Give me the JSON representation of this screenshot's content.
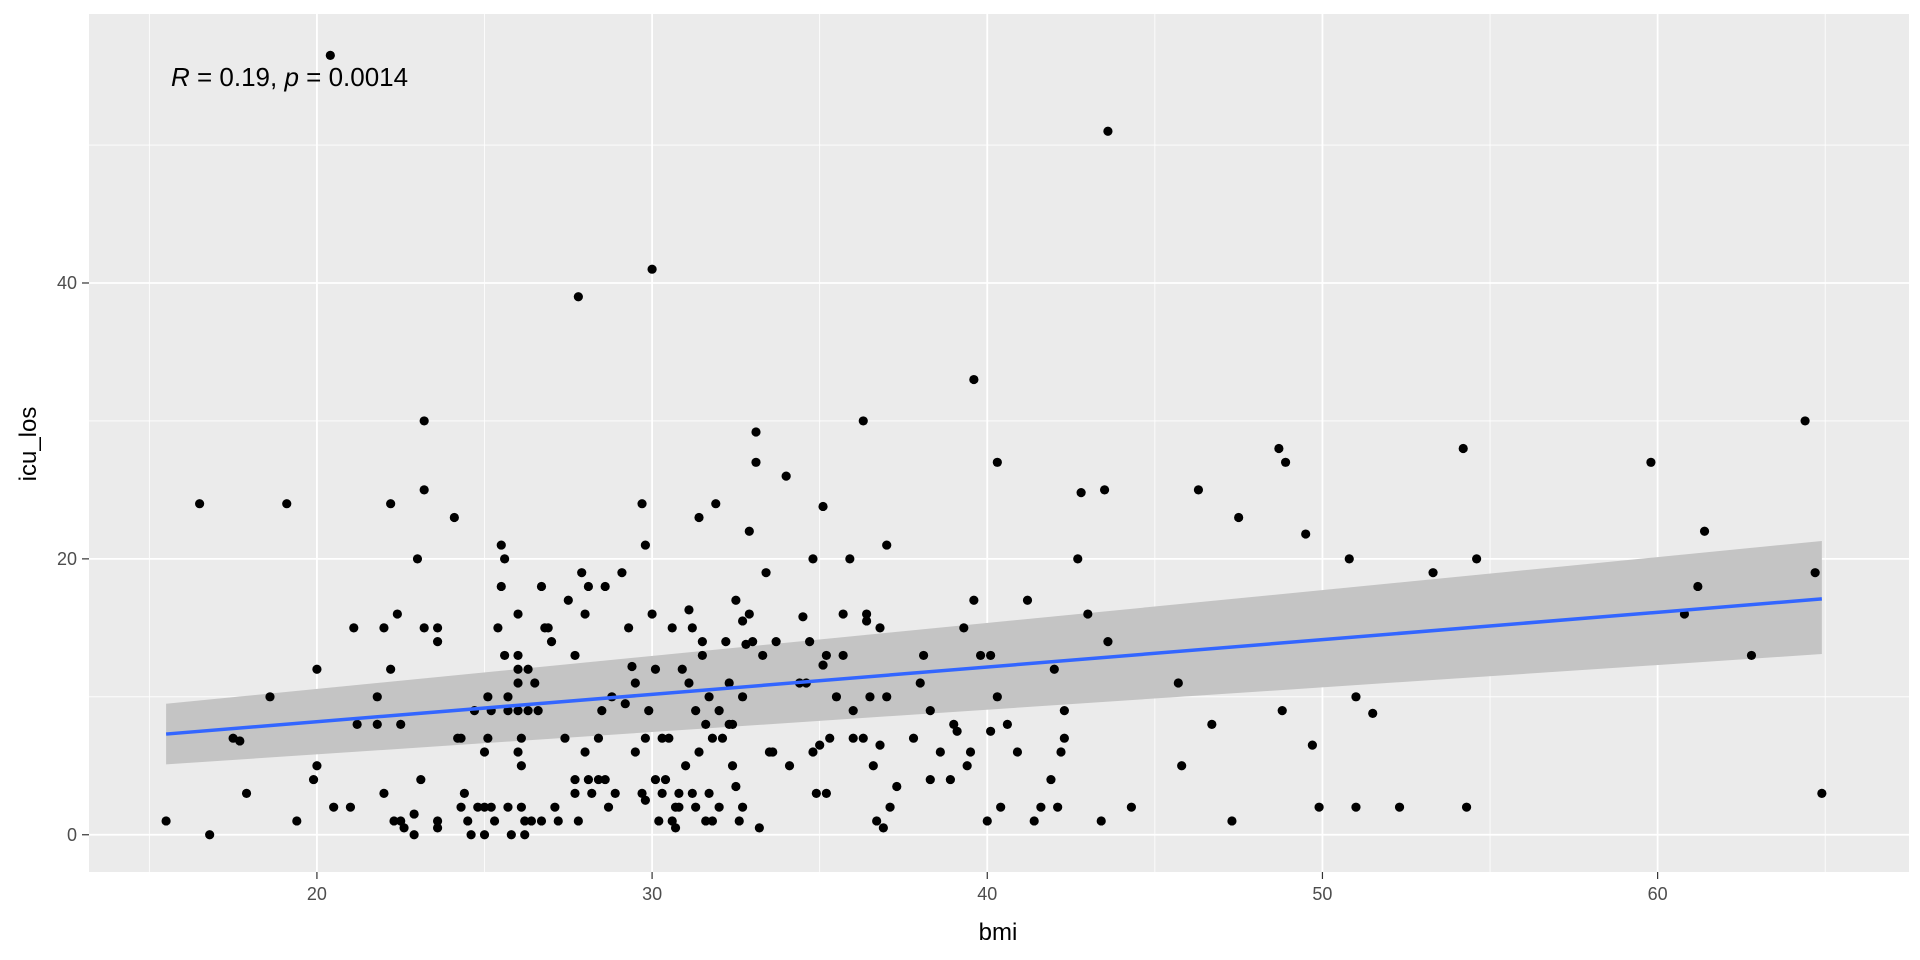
{
  "chart_data": {
    "type": "scatter",
    "title": "",
    "xlabel": "bmi",
    "ylabel": "icu_los",
    "xlim": [
      13.2,
      67.5
    ],
    "ylim": [
      -2.7,
      59.5
    ],
    "x_ticks": [
      20,
      30,
      40,
      50,
      60
    ],
    "x_tick_labels": [
      "20",
      "30",
      "40",
      "50",
      "60"
    ],
    "y_ticks": [
      0,
      20,
      40
    ],
    "y_tick_labels": [
      "0",
      "20",
      "40"
    ],
    "grid": true,
    "colors": {
      "panel_background": "#ebebeb",
      "grid_line": "#ffffff",
      "point": "#000000",
      "fit_line": "#3366ff",
      "confidence_band": "#c4c4c4",
      "tick_label": "#4d4d4d"
    },
    "annotation": {
      "r_symbol": "R",
      "r_value": " = 0.19, ",
      "p_symbol": "p",
      "p_value": " = 0.0014"
    },
    "regression": {
      "x": [
        15.5,
        64.9
      ],
      "y": [
        7.3,
        17.1
      ],
      "ci_lower": [
        5.1,
        13.1
      ],
      "ci_upper": [
        9.5,
        21.3
      ]
    },
    "points": [
      [
        15.5,
        1
      ],
      [
        16.5,
        24
      ],
      [
        16.8,
        0
      ],
      [
        17.5,
        7
      ],
      [
        17.7,
        6.8
      ],
      [
        17.9,
        3
      ],
      [
        18.6,
        10
      ],
      [
        19.1,
        24
      ],
      [
        19.4,
        1
      ],
      [
        19.9,
        4
      ],
      [
        20.0,
        5
      ],
      [
        20.0,
        12
      ],
      [
        20.4,
        56.5
      ],
      [
        20.5,
        2
      ],
      [
        21.0,
        2
      ],
      [
        21.1,
        15
      ],
      [
        21.2,
        8
      ],
      [
        21.8,
        10
      ],
      [
        21.8,
        8
      ],
      [
        22.0,
        15
      ],
      [
        22.0,
        3
      ],
      [
        22.2,
        24
      ],
      [
        22.2,
        12
      ],
      [
        22.3,
        1
      ],
      [
        22.4,
        16
      ],
      [
        22.5,
        1
      ],
      [
        22.6,
        0.5
      ],
      [
        22.5,
        8
      ],
      [
        22.9,
        1.5
      ],
      [
        22.9,
        0
      ],
      [
        23.0,
        20
      ],
      [
        23.1,
        4
      ],
      [
        23.2,
        30
      ],
      [
        23.2,
        25
      ],
      [
        23.2,
        15
      ],
      [
        23.6,
        15
      ],
      [
        23.6,
        14
      ],
      [
        23.6,
        0.5
      ],
      [
        23.6,
        1
      ],
      [
        24.1,
        23
      ],
      [
        24.2,
        7
      ],
      [
        24.3,
        7
      ],
      [
        24.3,
        2
      ],
      [
        24.4,
        3
      ],
      [
        24.5,
        1
      ],
      [
        24.6,
        0
      ],
      [
        24.7,
        9
      ],
      [
        24.8,
        2
      ],
      [
        25.0,
        2
      ],
      [
        25.0,
        0
      ],
      [
        25.0,
        6
      ],
      [
        25.1,
        10
      ],
      [
        25.1,
        7
      ],
      [
        25.2,
        2
      ],
      [
        25.2,
        9
      ],
      [
        25.3,
        1
      ],
      [
        25.4,
        15
      ],
      [
        25.5,
        21
      ],
      [
        25.5,
        18
      ],
      [
        25.6,
        20
      ],
      [
        25.6,
        13
      ],
      [
        25.7,
        2
      ],
      [
        25.7,
        10
      ],
      [
        25.7,
        9
      ],
      [
        25.8,
        0
      ],
      [
        26.0,
        16
      ],
      [
        26.0,
        13
      ],
      [
        26.0,
        12
      ],
      [
        26.0,
        11
      ],
      [
        26.0,
        9
      ],
      [
        26.0,
        6
      ],
      [
        26.1,
        5
      ],
      [
        26.1,
        7
      ],
      [
        26.1,
        2
      ],
      [
        26.2,
        0
      ],
      [
        26.2,
        1
      ],
      [
        26.3,
        12
      ],
      [
        26.3,
        9
      ],
      [
        26.4,
        1
      ],
      [
        26.5,
        11
      ],
      [
        26.6,
        9
      ],
      [
        26.7,
        1
      ],
      [
        26.7,
        18
      ],
      [
        26.8,
        15
      ],
      [
        26.9,
        15
      ],
      [
        27.0,
        14
      ],
      [
        27.1,
        2
      ],
      [
        27.2,
        1
      ],
      [
        27.4,
        7
      ],
      [
        27.5,
        17
      ],
      [
        27.7,
        13
      ],
      [
        27.7,
        3
      ],
      [
        27.7,
        4
      ],
      [
        27.8,
        1
      ],
      [
        27.8,
        39
      ],
      [
        27.9,
        19
      ],
      [
        28.0,
        6
      ],
      [
        28.0,
        16
      ],
      [
        28.1,
        18
      ],
      [
        28.1,
        4
      ],
      [
        28.2,
        3
      ],
      [
        28.4,
        4
      ],
      [
        28.4,
        7
      ],
      [
        28.5,
        9
      ],
      [
        28.6,
        18
      ],
      [
        28.6,
        4
      ],
      [
        28.7,
        2
      ],
      [
        28.8,
        10
      ],
      [
        28.9,
        3
      ],
      [
        29.1,
        19
      ],
      [
        29.2,
        9.5
      ],
      [
        29.3,
        15
      ],
      [
        29.4,
        12.2
      ],
      [
        29.5,
        11
      ],
      [
        29.5,
        6
      ],
      [
        29.7,
        24
      ],
      [
        29.7,
        3
      ],
      [
        29.8,
        21
      ],
      [
        29.8,
        7
      ],
      [
        29.8,
        2.5
      ],
      [
        29.9,
        9
      ],
      [
        30.0,
        41
      ],
      [
        30.0,
        16
      ],
      [
        30.1,
        12
      ],
      [
        30.1,
        4
      ],
      [
        30.2,
        1
      ],
      [
        30.3,
        3
      ],
      [
        30.3,
        7
      ],
      [
        30.4,
        4
      ],
      [
        30.5,
        7
      ],
      [
        30.6,
        15
      ],
      [
        30.6,
        1
      ],
      [
        30.7,
        0.5
      ],
      [
        30.7,
        2
      ],
      [
        30.8,
        2
      ],
      [
        30.8,
        3
      ],
      [
        30.9,
        12
      ],
      [
        31.0,
        5
      ],
      [
        31.1,
        11
      ],
      [
        31.1,
        16.3
      ],
      [
        31.2,
        15
      ],
      [
        31.2,
        3
      ],
      [
        31.3,
        9
      ],
      [
        31.3,
        2
      ],
      [
        31.4,
        6
      ],
      [
        31.4,
        23
      ],
      [
        31.5,
        14
      ],
      [
        31.5,
        13
      ],
      [
        31.6,
        1
      ],
      [
        31.6,
        8
      ],
      [
        31.7,
        3
      ],
      [
        31.7,
        10
      ],
      [
        31.8,
        1
      ],
      [
        31.8,
        7
      ],
      [
        31.9,
        24
      ],
      [
        32.0,
        9
      ],
      [
        32.0,
        2
      ],
      [
        32.1,
        7
      ],
      [
        32.2,
        14
      ],
      [
        32.3,
        8
      ],
      [
        32.3,
        11
      ],
      [
        32.4,
        5
      ],
      [
        32.4,
        8
      ],
      [
        32.5,
        17
      ],
      [
        32.5,
        3.5
      ],
      [
        32.6,
        1
      ],
      [
        32.7,
        2
      ],
      [
        32.7,
        10
      ],
      [
        32.7,
        15.5
      ],
      [
        32.8,
        13.8
      ],
      [
        32.9,
        22
      ],
      [
        32.9,
        16
      ],
      [
        33.0,
        14
      ],
      [
        33.1,
        29.2
      ],
      [
        33.1,
        27
      ],
      [
        33.2,
        0.5
      ],
      [
        33.3,
        13
      ],
      [
        33.4,
        19
      ],
      [
        33.5,
        6
      ],
      [
        33.6,
        6
      ],
      [
        33.7,
        14
      ],
      [
        34.0,
        26
      ],
      [
        34.1,
        5
      ],
      [
        34.4,
        11
      ],
      [
        34.5,
        15.8
      ],
      [
        34.6,
        11
      ],
      [
        34.7,
        14
      ],
      [
        34.8,
        20
      ],
      [
        34.8,
        6
      ],
      [
        34.9,
        3
      ],
      [
        35.0,
        6.5
      ],
      [
        35.1,
        23.8
      ],
      [
        35.1,
        12.3
      ],
      [
        35.2,
        13
      ],
      [
        35.2,
        3
      ],
      [
        35.3,
        7
      ],
      [
        35.5,
        10
      ],
      [
        35.7,
        13
      ],
      [
        35.7,
        16
      ],
      [
        35.9,
        20
      ],
      [
        36.0,
        7
      ],
      [
        36.0,
        9
      ],
      [
        36.3,
        30
      ],
      [
        36.3,
        7
      ],
      [
        36.4,
        16
      ],
      [
        36.4,
        15.5
      ],
      [
        36.5,
        10
      ],
      [
        36.6,
        5
      ],
      [
        36.7,
        1
      ],
      [
        36.8,
        6.5
      ],
      [
        36.8,
        15
      ],
      [
        36.9,
        0.5
      ],
      [
        37.0,
        21
      ],
      [
        37.0,
        10
      ],
      [
        37.1,
        2
      ],
      [
        37.3,
        3.5
      ],
      [
        37.8,
        7
      ],
      [
        38.0,
        11
      ],
      [
        38.1,
        13
      ],
      [
        38.3,
        4
      ],
      [
        38.3,
        9
      ],
      [
        38.6,
        6
      ],
      [
        38.9,
        4
      ],
      [
        39.0,
        8
      ],
      [
        39.1,
        7.5
      ],
      [
        39.3,
        15
      ],
      [
        39.4,
        5
      ],
      [
        39.5,
        6
      ],
      [
        39.6,
        17
      ],
      [
        39.6,
        33
      ],
      [
        39.8,
        13
      ],
      [
        40.0,
        1
      ],
      [
        40.1,
        7.5
      ],
      [
        40.1,
        13
      ],
      [
        40.3,
        27
      ],
      [
        40.3,
        10
      ],
      [
        40.4,
        2
      ],
      [
        40.6,
        8
      ],
      [
        40.9,
        6
      ],
      [
        41.2,
        17
      ],
      [
        41.4,
        1
      ],
      [
        41.6,
        2
      ],
      [
        41.9,
        4
      ],
      [
        42.0,
        12
      ],
      [
        42.1,
        2
      ],
      [
        42.2,
        6
      ],
      [
        42.3,
        7
      ],
      [
        42.3,
        9
      ],
      [
        42.7,
        20
      ],
      [
        42.8,
        24.8
      ],
      [
        43.0,
        16
      ],
      [
        43.4,
        1
      ],
      [
        43.5,
        25
      ],
      [
        43.6,
        51
      ],
      [
        43.6,
        14
      ],
      [
        44.3,
        2
      ],
      [
        45.7,
        11
      ],
      [
        45.8,
        5
      ],
      [
        46.3,
        25
      ],
      [
        46.7,
        8
      ],
      [
        47.3,
        1
      ],
      [
        47.5,
        23
      ],
      [
        48.7,
        28
      ],
      [
        48.8,
        9
      ],
      [
        48.9,
        27
      ],
      [
        49.5,
        21.8
      ],
      [
        49.7,
        6.5
      ],
      [
        49.9,
        2
      ],
      [
        50.8,
        20
      ],
      [
        51.0,
        10
      ],
      [
        51.0,
        2
      ],
      [
        51.5,
        8.8
      ],
      [
        52.3,
        2
      ],
      [
        53.3,
        19
      ],
      [
        54.2,
        28
      ],
      [
        54.3,
        2
      ],
      [
        54.6,
        20
      ],
      [
        59.8,
        27
      ],
      [
        60.8,
        16
      ],
      [
        61.2,
        18
      ],
      [
        61.4,
        22
      ],
      [
        62.8,
        13
      ],
      [
        64.4,
        30
      ],
      [
        64.7,
        19
      ],
      [
        64.9,
        3
      ]
    ]
  }
}
